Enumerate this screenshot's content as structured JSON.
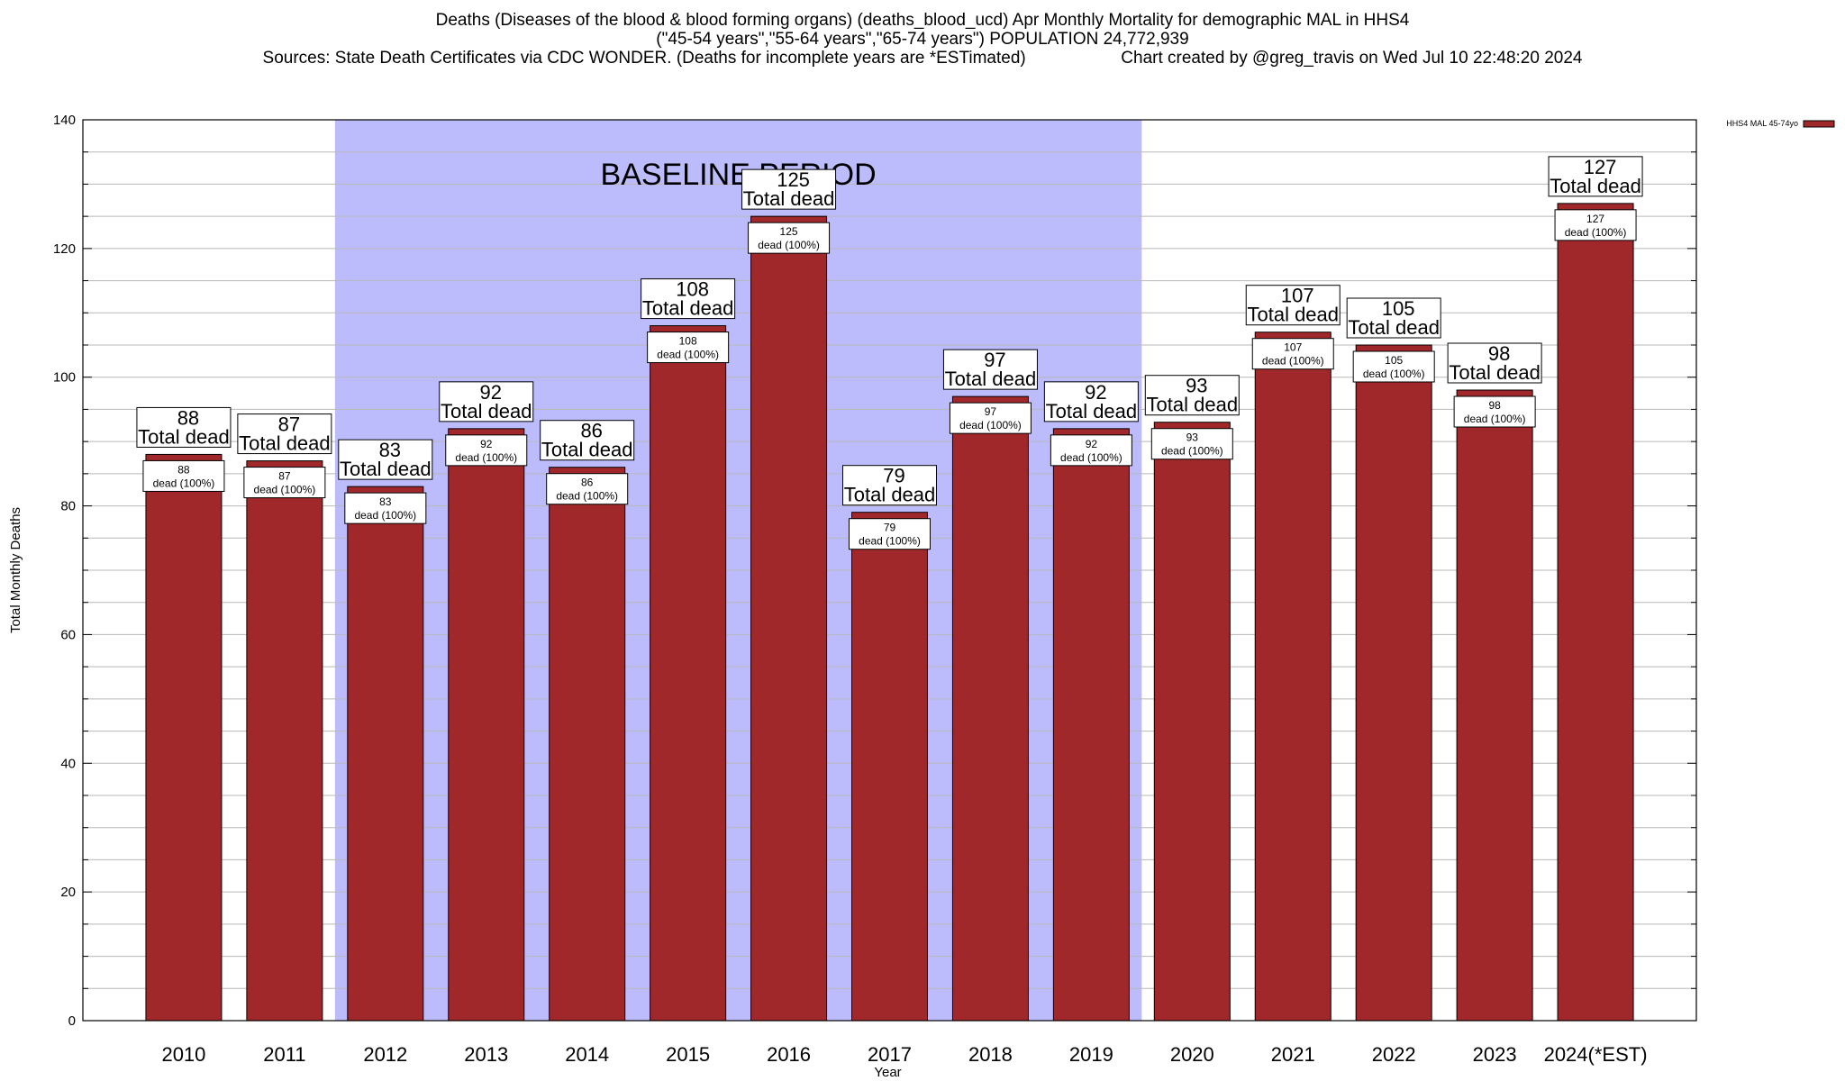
{
  "chart_data": {
    "type": "bar",
    "title": "Deaths (Diseases of the blood & blood forming organs) (deaths_blood_ucd) Apr Monthly Mortality for demographic MAL in HHS4",
    "subtitle": "(\"45-54 years\",\"55-64 years\",\"65-74 years\") POPULATION 24,772,939",
    "source": "Sources: State Death Certificates via CDC WONDER. (Deaths for incomplete years are *ESTimated)",
    "credit": "Chart created by @greg_travis on Wed Jul 10 22:48:20 2024",
    "xlabel": "Year",
    "ylabel": "Total Monthly Deaths",
    "ylim": [
      0,
      140
    ],
    "yticks": [
      0,
      20,
      40,
      60,
      80,
      100,
      120,
      140
    ],
    "grid": true,
    "legend_position": "top-right",
    "baseline_label": "BASELINE PERIOD",
    "baseline_range": [
      "2012",
      "2019"
    ],
    "baseline_color": "#bcbcfc",
    "bar_color": "#a0282a",
    "categories": [
      "2010",
      "2011",
      "2012",
      "2013",
      "2014",
      "2015",
      "2016",
      "2017",
      "2018",
      "2019",
      "2020",
      "2021",
      "2022",
      "2023",
      "2024(*EST)"
    ],
    "series": [
      {
        "name": "HHS4 MAL 45-74yo",
        "values": [
          88,
          87,
          83,
          92,
          86,
          108,
          125,
          79,
          97,
          92,
          93,
          107,
          105,
          98,
          127
        ]
      }
    ],
    "top_label_suffix": "Total dead",
    "inner_label_suffix": "dead (100%)"
  }
}
